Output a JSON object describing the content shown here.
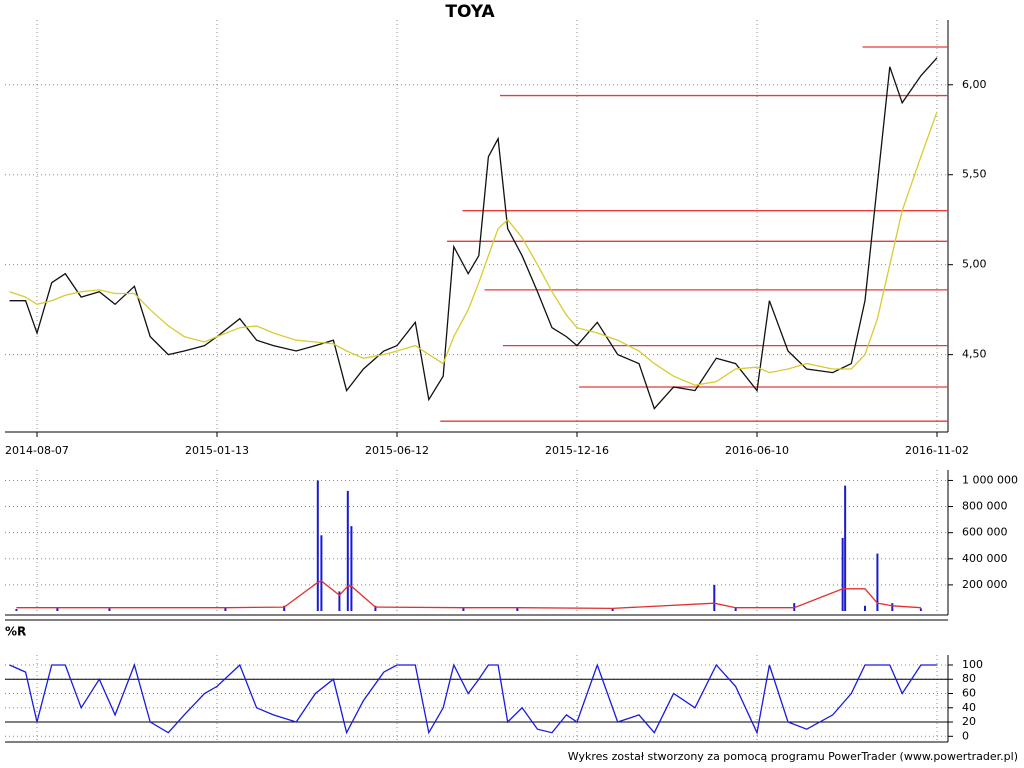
{
  "chart_data": [
    {
      "type": "line",
      "title": "TOYA",
      "x": [
        "2014-07-14",
        "2014-07-28",
        "2014-08-07",
        "2014-08-20",
        "2014-09-01",
        "2014-09-15",
        "2014-10-01",
        "2014-10-15",
        "2014-11-01",
        "2014-11-15",
        "2014-12-01",
        "2014-12-15",
        "2015-01-02",
        "2015-01-13",
        "2015-02-01",
        "2015-02-15",
        "2015-03-01",
        "2015-03-20",
        "2015-04-05",
        "2015-04-20",
        "2015-05-01",
        "2015-05-15",
        "2015-06-01",
        "2015-06-12",
        "2015-07-01",
        "2015-07-15",
        "2015-07-30",
        "2015-08-10",
        "2015-08-25",
        "2015-09-05",
        "2015-09-15",
        "2015-09-25",
        "2015-10-05",
        "2015-10-20",
        "2015-11-05",
        "2015-11-20",
        "2015-12-05",
        "2015-12-16",
        "2016-01-05",
        "2016-01-25",
        "2016-02-15",
        "2016-03-01",
        "2016-03-20",
        "2016-04-10",
        "2016-05-01",
        "2016-05-20",
        "2016-06-10",
        "2016-06-20",
        "2016-07-05",
        "2016-07-20",
        "2016-08-10",
        "2016-08-25",
        "2016-09-05",
        "2016-09-15",
        "2016-09-25",
        "2016-10-05",
        "2016-10-20",
        "2016-11-02"
      ],
      "series": [
        {
          "color": "#111111",
          "values": [
            4.8,
            4.8,
            4.62,
            4.9,
            4.95,
            4.82,
            4.85,
            4.78,
            4.88,
            4.6,
            4.5,
            4.52,
            4.55,
            4.6,
            4.7,
            4.58,
            4.55,
            4.52,
            4.55,
            4.58,
            4.3,
            4.42,
            4.52,
            4.55,
            4.68,
            4.25,
            4.38,
            5.1,
            4.95,
            5.05,
            5.6,
            5.7,
            5.2,
            5.05,
            4.85,
            4.65,
            4.6,
            4.55,
            4.68,
            4.5,
            4.45,
            4.2,
            4.32,
            4.3,
            4.48,
            4.45,
            4.3,
            4.8,
            4.52,
            4.42,
            4.4,
            4.45,
            4.8,
            5.45,
            6.1,
            5.9,
            6.05,
            6.15
          ]
        },
        {
          "color": "#d8cc30",
          "values": [
            4.85,
            4.82,
            4.78,
            4.8,
            4.83,
            4.85,
            4.86,
            4.84,
            4.84,
            4.75,
            4.66,
            4.6,
            4.57,
            4.6,
            4.65,
            4.66,
            4.62,
            4.58,
            4.57,
            4.56,
            4.52,
            4.48,
            4.5,
            4.52,
            4.55,
            4.5,
            4.45,
            4.6,
            4.75,
            4.9,
            5.05,
            5.2,
            5.25,
            5.15,
            5.0,
            4.85,
            4.72,
            4.65,
            4.62,
            4.58,
            4.52,
            4.45,
            4.38,
            4.33,
            4.35,
            4.42,
            4.43,
            4.4,
            4.42,
            4.45,
            4.42,
            4.42,
            4.5,
            4.7,
            5.0,
            5.3,
            5.6,
            5.85
          ]
        }
      ],
      "levels_color": "#e83a3a",
      "levels": [
        {
          "value": 6.21,
          "from": "2016-09-03"
        },
        {
          "value": 5.94,
          "from": "2015-09-27"
        },
        {
          "value": 5.3,
          "from": "2015-08-19"
        },
        {
          "value": 5.13,
          "from": "2015-08-03"
        },
        {
          "value": 4.86,
          "from": "2015-09-11"
        },
        {
          "value": 4.55,
          "from": "2015-09-30"
        },
        {
          "value": 4.32,
          "from": "2015-12-18"
        },
        {
          "value": 4.13,
          "from": "2015-07-27"
        }
      ],
      "xlim": [
        "2014-07-10",
        "2016-11-08"
      ],
      "xticks": [
        "2014-08-07",
        "2015-01-13",
        "2015-06-12",
        "2015-12-16",
        "2016-06-10",
        "2016-11-02"
      ],
      "ylim": [
        4.07,
        6.36
      ],
      "yticks": [
        {
          "value": 4.5,
          "label": "4,50"
        },
        {
          "value": 5,
          "label": "5,00"
        },
        {
          "value": 5.5,
          "label": "5,50"
        },
        {
          "value": 6,
          "label": "6,00"
        }
      ],
      "grid": true
    },
    {
      "type": "bar",
      "x": [
        "2014-07-20",
        "2014-08-25",
        "2014-10-10",
        "2015-01-20",
        "2015-03-10",
        "2015-04-07",
        "2015-04-10",
        "2015-04-25",
        "2015-05-02",
        "2015-05-05",
        "2015-05-25",
        "2015-08-20",
        "2015-10-15",
        "2016-01-20",
        "2016-04-29",
        "2016-05-20",
        "2016-07-10",
        "2016-08-18",
        "2016-08-20",
        "2016-09-05",
        "2016-09-15",
        "2016-09-27",
        "2016-10-20"
      ],
      "series": [
        {
          "color": "#1a1acc",
          "values": [
            15000,
            30000,
            20000,
            25000,
            40000,
            1000000,
            580000,
            150000,
            920000,
            650000,
            40000,
            30000,
            25000,
            20000,
            200000,
            30000,
            60000,
            560000,
            960000,
            40000,
            440000,
            60000,
            20000
          ]
        },
        {
          "type": "line",
          "color": "#e03030",
          "values": [
            25000,
            25000,
            25000,
            25000,
            30000,
            220000,
            230000,
            120000,
            190000,
            190000,
            30000,
            25000,
            25000,
            20000,
            60000,
            25000,
            25000,
            170000,
            170000,
            170000,
            60000,
            40000,
            25000
          ]
        }
      ],
      "ylim": [
        0,
        1080000
      ],
      "yticks": [
        {
          "value": 200000,
          "label": "200 000"
        },
        {
          "value": 400000,
          "label": "400 000"
        },
        {
          "value": 600000,
          "label": "600 000"
        },
        {
          "value": 800000,
          "label": "800 000"
        },
        {
          "value": 1000000,
          "label": "1 000 000"
        }
      ],
      "grid": true
    },
    {
      "type": "line",
      "title": "%R",
      "series": [
        {
          "color": "#1a1ae0",
          "values": [
            100,
            90,
            20,
            100,
            100,
            40,
            80,
            30,
            100,
            20,
            5,
            30,
            60,
            70,
            100,
            40,
            30,
            20,
            60,
            80,
            5,
            50,
            90,
            100,
            100,
            5,
            40,
            100,
            60,
            80,
            100,
            100,
            20,
            40,
            10,
            5,
            30,
            20,
            100,
            20,
            30,
            5,
            60,
            40,
            100,
            70,
            5,
            100,
            20,
            10,
            30,
            60,
            100,
            100,
            100,
            60,
            100,
            100
          ]
        }
      ],
      "levels": [
        20,
        80
      ],
      "ylim": [
        -8,
        114
      ],
      "yticks": [
        0,
        20,
        40,
        60,
        80,
        100
      ],
      "grid": true
    }
  ],
  "footer": "Wykres został stworzony za pomocą programu PowerTrader (www.powertrader.pl)"
}
